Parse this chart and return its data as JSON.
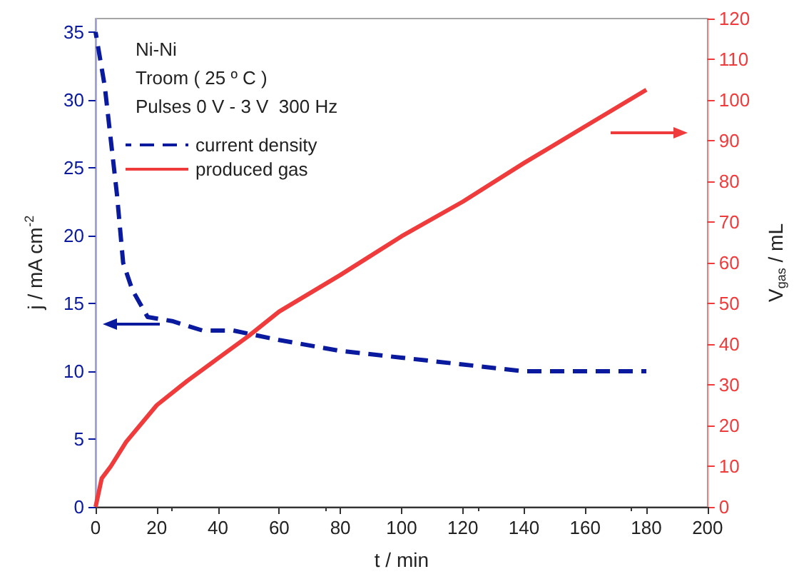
{
  "chart_data": {
    "type": "line",
    "xlabel": "t / min",
    "ylabel": "j / mA cm$^{-2}$",
    "y2label": "V$_{gas}$ / mL",
    "annotations": [
      "Ni-Ni",
      "Troom ( 25 º C )",
      "Pulses 0 V - 3 V  300 Hz"
    ],
    "xlim": [
      0,
      200
    ],
    "xticks": [
      0,
      20,
      40,
      60,
      80,
      100,
      120,
      140,
      160,
      180,
      200
    ],
    "ylim": [
      0,
      36
    ],
    "yticks": [
      0,
      5,
      10,
      15,
      20,
      25,
      30,
      35
    ],
    "y2lim": [
      0,
      120
    ],
    "y2ticks": [
      0,
      10,
      20,
      30,
      40,
      50,
      60,
      70,
      80,
      90,
      100,
      110,
      120
    ],
    "legend": "top left",
    "grid": false,
    "marker": "none",
    "series": [
      {
        "name": "current density",
        "color": "#0a1a9e",
        "line_style": "dashed",
        "x": [
          0,
          3,
          5,
          7,
          9,
          12,
          17,
          25,
          35,
          45,
          60,
          80,
          100,
          120,
          140,
          160,
          180
        ],
        "values": [
          35,
          31,
          27,
          23,
          18,
          16,
          14,
          13.7,
          13,
          13,
          12.3,
          11.5,
          11,
          10.5,
          10,
          10,
          10
        ]
      },
      {
        "name": "produced gas",
        "color": "#ef3b3b",
        "line_style": "solid",
        "axis": "y2",
        "x": [
          0,
          2,
          5,
          10,
          20,
          30,
          40,
          50,
          60,
          80,
          100,
          120,
          140,
          160,
          180
        ],
        "values": [
          0,
          7,
          10,
          16,
          25,
          31,
          36.5,
          42,
          48,
          57,
          66.5,
          75,
          84.5,
          93.5,
          102.5
        ]
      }
    ]
  }
}
